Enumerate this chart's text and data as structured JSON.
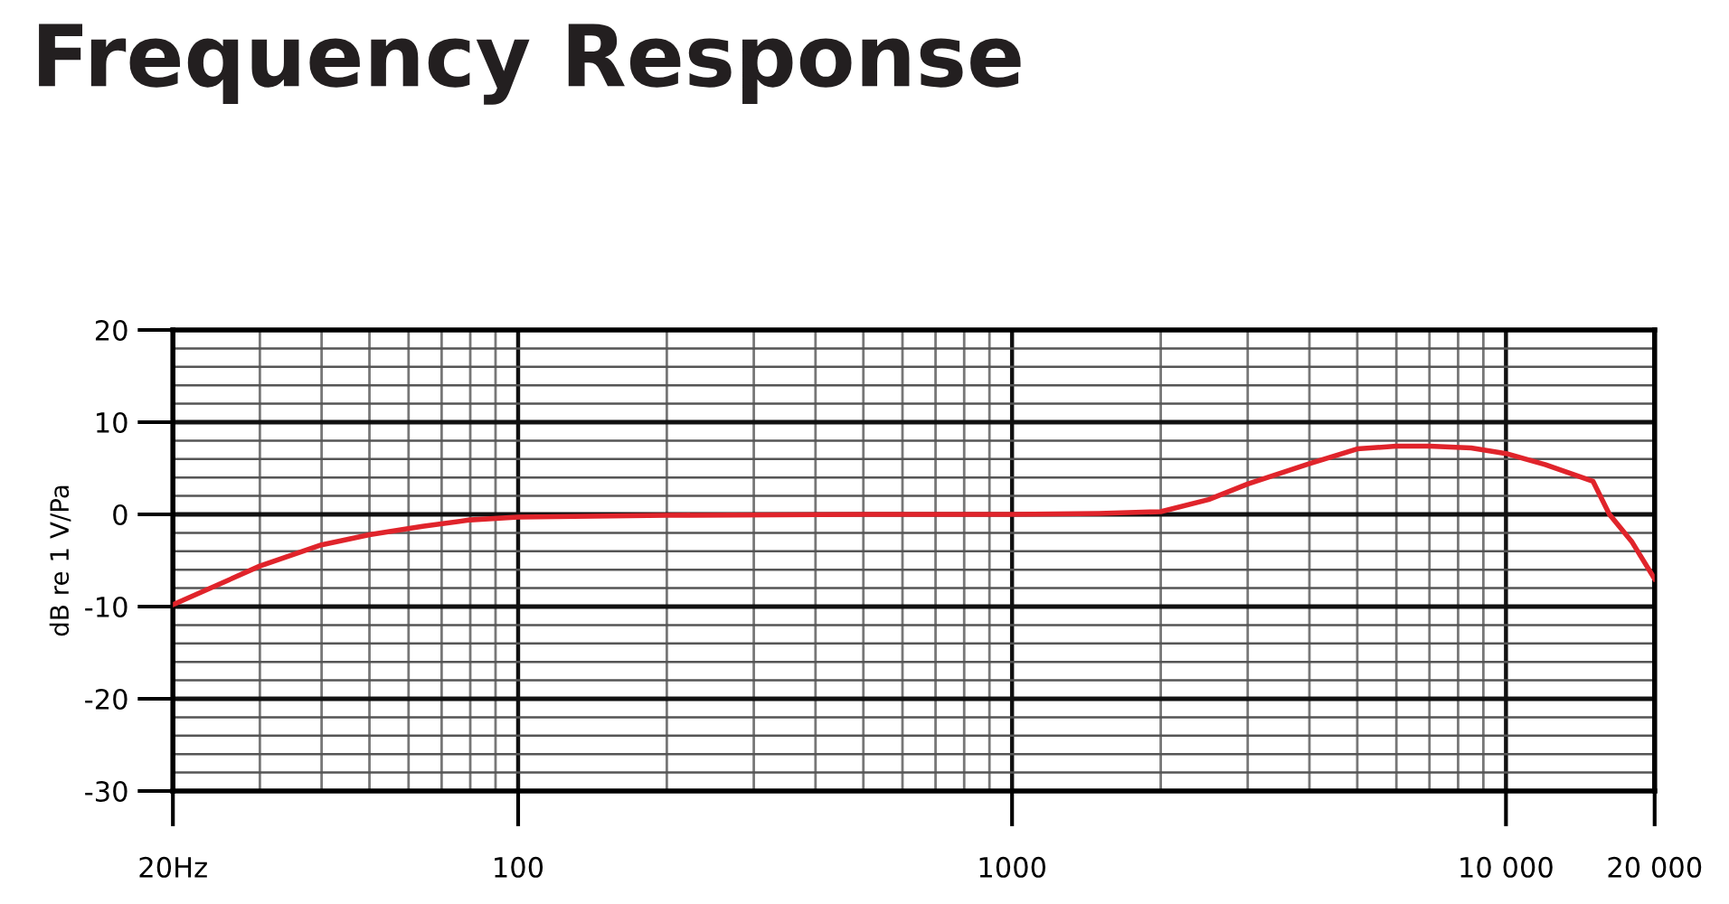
{
  "chart_data": {
    "type": "line",
    "title": "Frequency Response",
    "ylabel": "dB re 1 V/Pa",
    "log": "x",
    "grid": true,
    "xlim": [
      20,
      20000
    ],
    "ylim": [
      -30,
      20
    ],
    "xticks": [
      {
        "value": 20,
        "label": "20Hz"
      },
      100,
      1000,
      {
        "value": 10000,
        "label": "10 000"
      },
      {
        "value": 20000,
        "label": "20 000"
      }
    ],
    "yticks": [
      -30,
      -20,
      -10,
      0,
      10,
      20
    ],
    "series": [
      {
        "color": "#e0242b",
        "x": [
          20,
          25,
          30,
          40,
          50,
          64,
          80,
          100,
          200,
          500,
          1000,
          1500,
          2000,
          2500,
          3000,
          4000,
          5000,
          6000,
          7000,
          8500,
          10000,
          12000,
          15000,
          16200,
          18000,
          20000
        ],
        "values": [
          -9.8,
          -7.5,
          -5.6,
          -3.3,
          -2.2,
          -1.3,
          -0.6,
          -0.3,
          -0.1,
          0,
          0,
          0.1,
          0.3,
          1.6,
          3.3,
          5.5,
          7.1,
          7.4,
          7.4,
          7.2,
          6.6,
          5.4,
          3.6,
          0,
          -3,
          -7
        ]
      }
    ]
  }
}
